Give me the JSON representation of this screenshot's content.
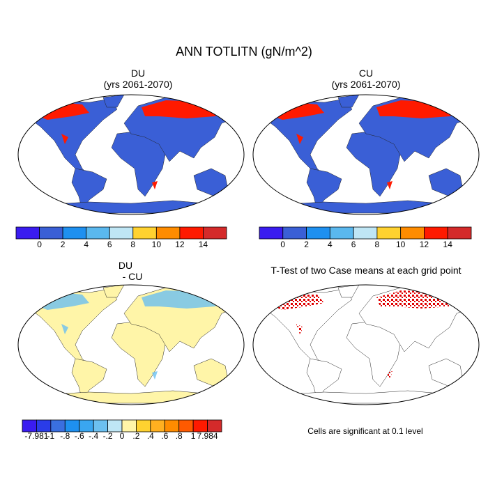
{
  "title": "ANN TOTLITN (gN/m^2)",
  "panels": [
    {
      "title": [
        "DU",
        "(yrs 2061-2070)"
      ]
    },
    {
      "title": [
        "CU",
        "(yrs 2061-2070)"
      ]
    },
    {
      "title": [
        "DU",
        "- CU"
      ]
    },
    {
      "title": [
        "T-Test of two Case means at each grid point"
      ]
    }
  ],
  "colorbars": [
    {
      "colors": [
        "#3a1cf0",
        "#3a5fd6",
        "#1e90f0",
        "#5ab8ee",
        "#bfe6f5",
        "#ffd230",
        "#ff8c00",
        "#ff1a00",
        "#d42a2a"
      ],
      "labels": [
        "0",
        "2",
        "4",
        "6",
        "8",
        "10",
        "12",
        "14"
      ]
    },
    {
      "colors": [
        "#3a1cf0",
        "#3a5fd6",
        "#1e90f0",
        "#5ab8ee",
        "#bfe6f5",
        "#ffd230",
        "#ff8c00",
        "#ff1a00",
        "#d42a2a"
      ],
      "labels": [
        "0",
        "2",
        "4",
        "6",
        "8",
        "10",
        "12",
        "14"
      ]
    },
    {
      "colors": [
        "#3a1cf0",
        "#2a3ce8",
        "#3a6fe0",
        "#1e90f0",
        "#3aa6f0",
        "#6cc0f0",
        "#bfe6f5",
        "#fff5a8",
        "#ffd230",
        "#ffb020",
        "#ff8c00",
        "#ff5a00",
        "#ff1a00",
        "#d42a2a"
      ],
      "labels": [
        "-7.981",
        "-1",
        "-.8",
        "-.6",
        "-.4",
        "-.2",
        "0",
        ".2",
        ".4",
        ".6",
        ".8",
        "1",
        "7.984"
      ]
    }
  ],
  "note": "Cells are significant at 0.1 level"
}
